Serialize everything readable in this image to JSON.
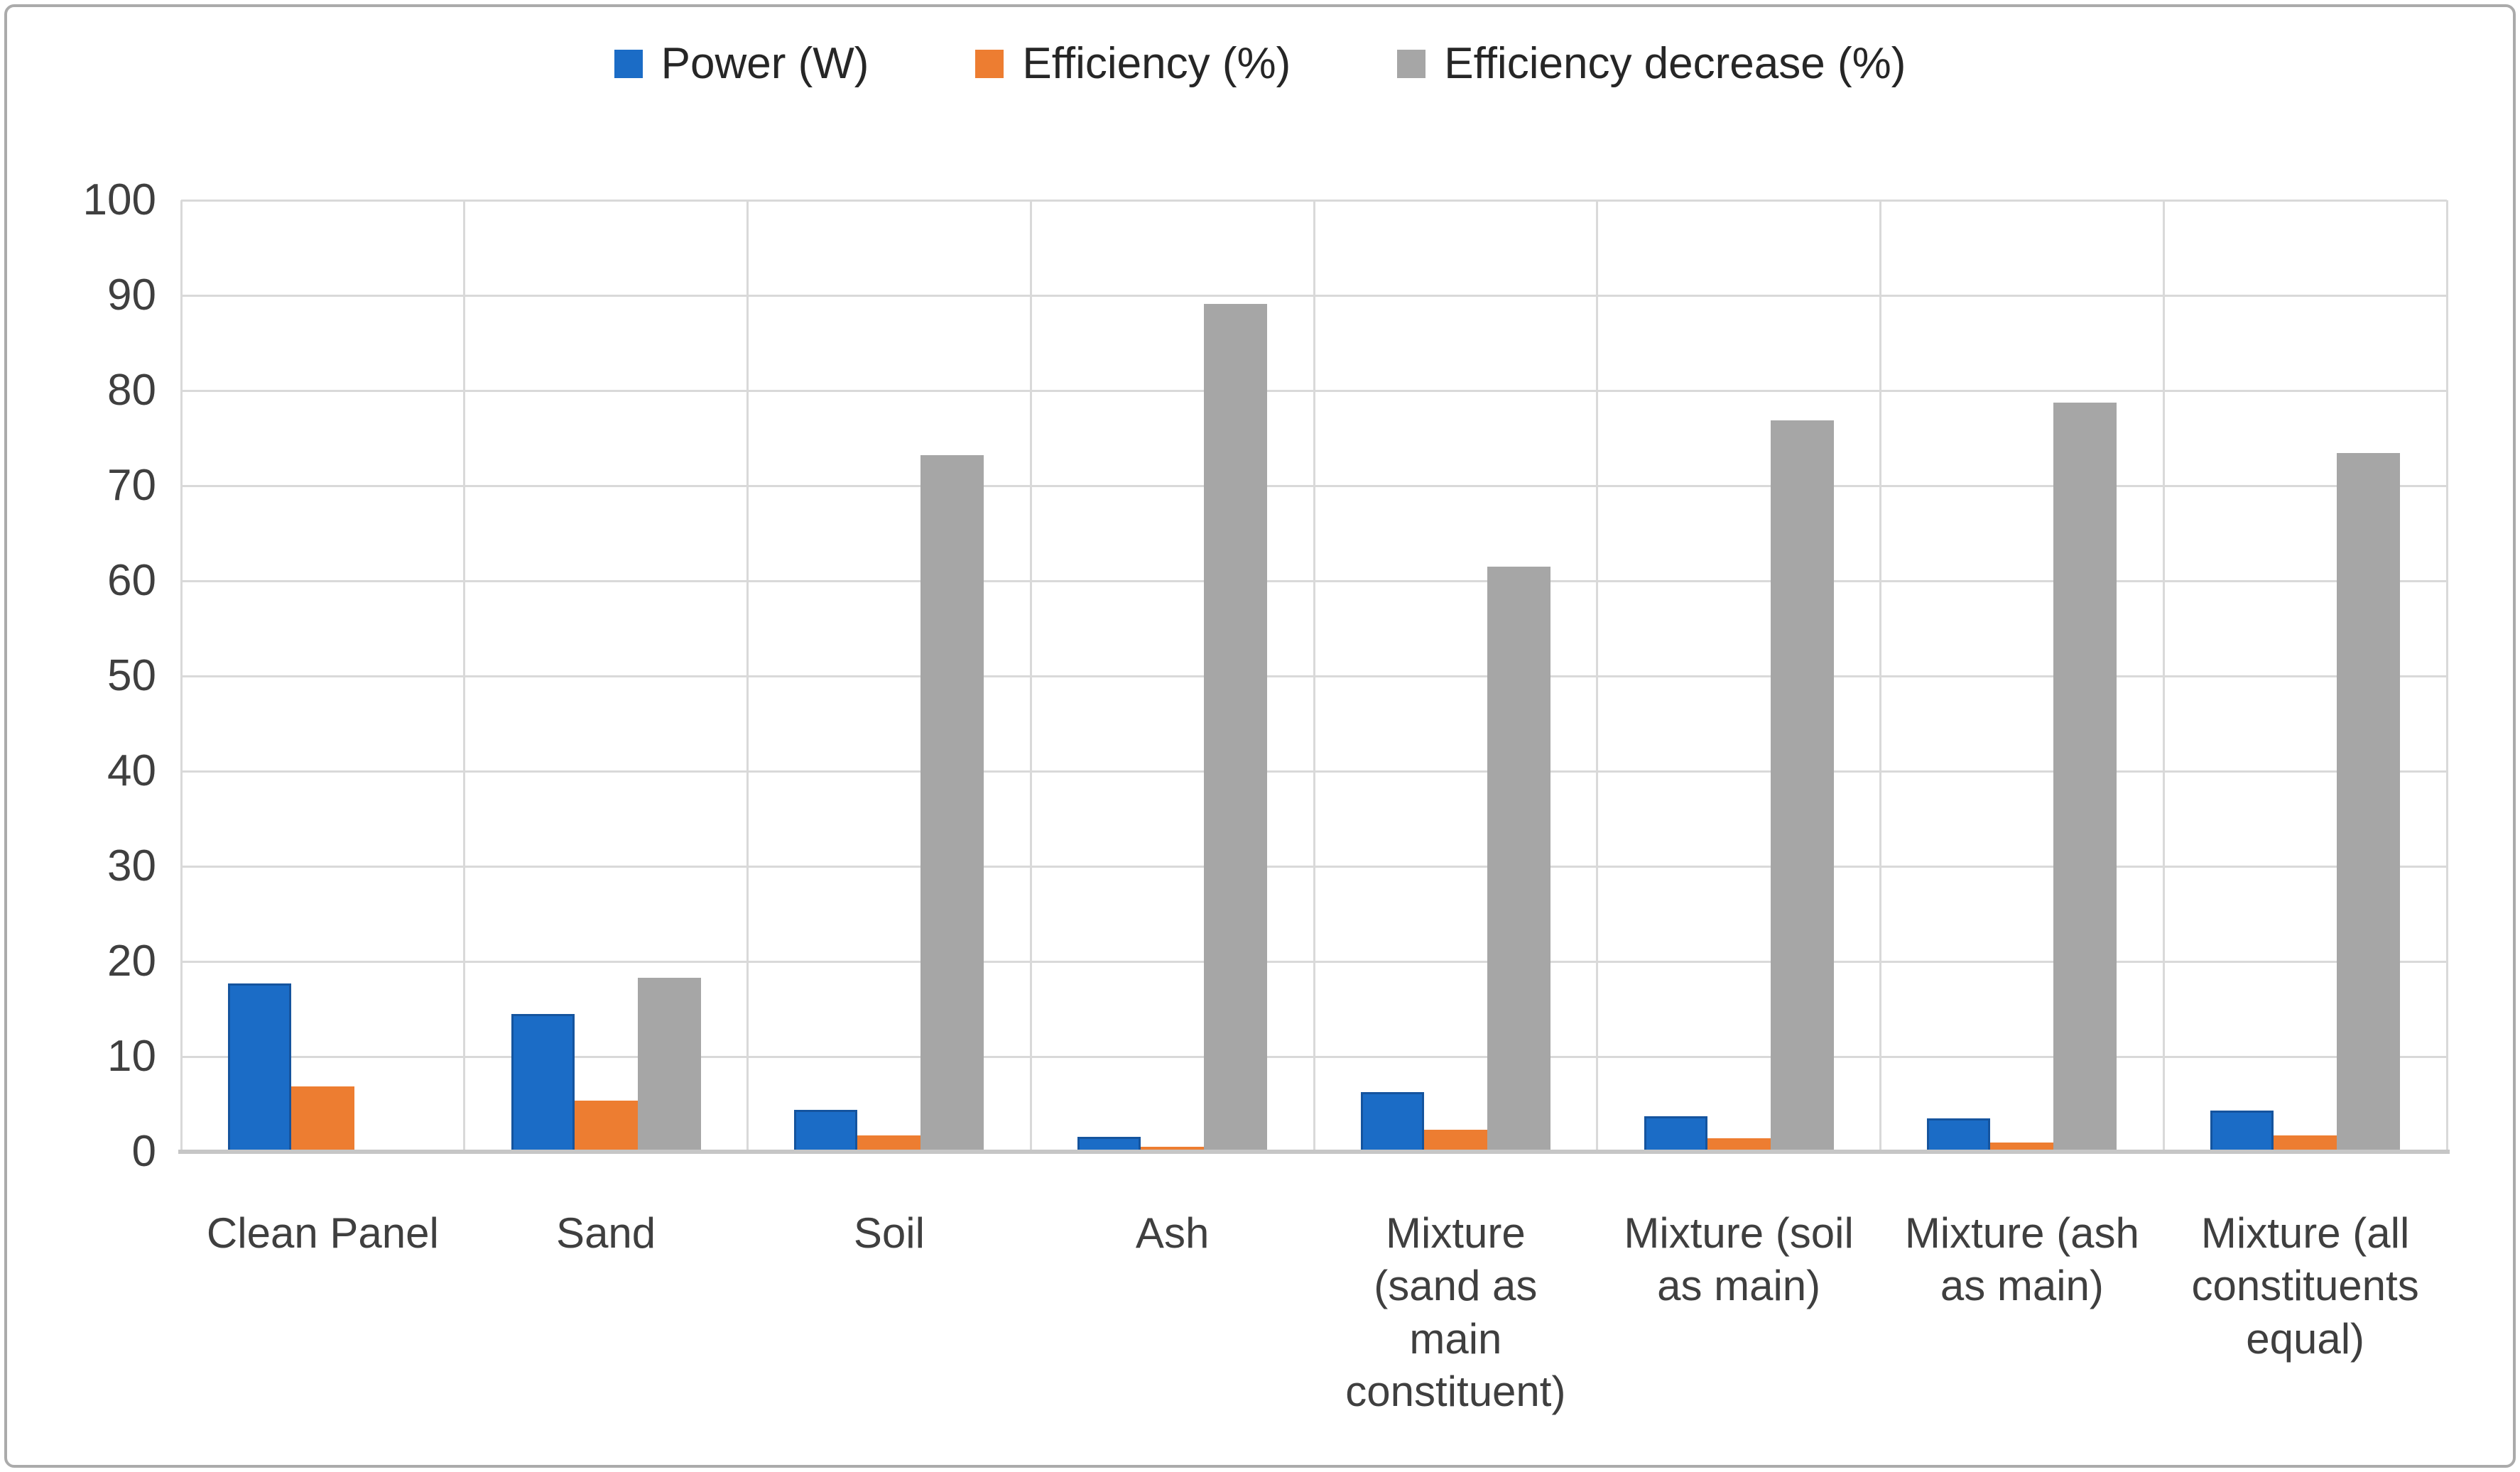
{
  "figure": {
    "background": "#ffffff",
    "frame_border_color": "#ababab"
  },
  "axis_colors": {
    "tick_text": "#3f3f3f",
    "gridline": "#d9d9d9",
    "axis_line": "#c6c6c6"
  },
  "chart_data": {
    "type": "bar",
    "title": "",
    "xlabel": "",
    "ylabel": "",
    "categories": [
      "Clean Panel",
      "Sand",
      "Soil",
      "Ash",
      "Mixture (sand as main constituent)",
      "Mixture (soil as main)",
      "Mixture (ash as main)",
      "Mixture (all constituents equal)"
    ],
    "series": [
      {
        "name": "Power (W)",
        "color": "#1b6cc6",
        "values": [
          17.7,
          14.5,
          4.4,
          1.6,
          6.3,
          3.7,
          3.5,
          4.3
        ]
      },
      {
        "name": "Efficiency (%)",
        "color": "#ed7d31",
        "values": [
          6.9,
          5.4,
          1.7,
          0.5,
          2.3,
          1.4,
          1.0,
          1.7
        ]
      },
      {
        "name": "Efficiency decrease (%)",
        "color": "#a6a6a6",
        "values": [
          0,
          18.3,
          73.2,
          89.1,
          61.5,
          76.9,
          78.7,
          73.4
        ]
      }
    ],
    "ylim": [
      0,
      100
    ],
    "yticks": [
      0,
      10,
      20,
      30,
      40,
      50,
      60,
      70,
      80,
      90,
      100
    ],
    "grid": "horizontal and vertical category gridlines",
    "legend_position": "top"
  },
  "x_axis": {
    "tick_lines": [
      [
        "Clean Panel"
      ],
      [
        "Sand"
      ],
      [
        "Soil"
      ],
      [
        "Ash"
      ],
      [
        "Mixture",
        "(sand as",
        "main",
        "constituent)"
      ],
      [
        "Mixture (soil",
        "as main)"
      ],
      [
        "Mixture (ash",
        "as main)"
      ],
      [
        "Mixture (all",
        "constituents",
        "equal)"
      ]
    ]
  }
}
